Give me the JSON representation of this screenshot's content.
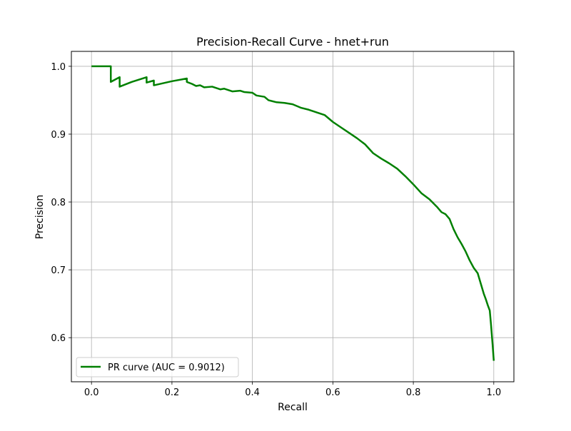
{
  "chart_data": {
    "type": "line",
    "title": "Precision-Recall Curve - hnet+run",
    "xlabel": "Recall",
    "ylabel": "Precision",
    "xlim": [
      -0.05,
      1.05
    ],
    "ylim": [
      0.535,
      1.022
    ],
    "x_ticks": [
      {
        "value": 0.0,
        "label": "0.0"
      },
      {
        "value": 0.2,
        "label": "0.2"
      },
      {
        "value": 0.4,
        "label": "0.4"
      },
      {
        "value": 0.6,
        "label": "0.6"
      },
      {
        "value": 0.8,
        "label": "0.8"
      },
      {
        "value": 1.0,
        "label": "1.0"
      }
    ],
    "y_ticks": [
      {
        "value": 0.6,
        "label": "0.6"
      },
      {
        "value": 0.7,
        "label": "0.7"
      },
      {
        "value": 0.8,
        "label": "0.8"
      },
      {
        "value": 0.9,
        "label": "0.9"
      },
      {
        "value": 1.0,
        "label": "1.0"
      }
    ],
    "grid": true,
    "legend_position": "lower-left",
    "series": [
      {
        "name": "PR curve (AUC = 0.9012)",
        "color": "#008000",
        "x": [
          0.0,
          0.048,
          0.048,
          0.07,
          0.07,
          0.1,
          0.137,
          0.137,
          0.155,
          0.155,
          0.2,
          0.237,
          0.237,
          0.25,
          0.26,
          0.27,
          0.28,
          0.3,
          0.32,
          0.33,
          0.35,
          0.37,
          0.38,
          0.4,
          0.41,
          0.43,
          0.44,
          0.46,
          0.48,
          0.5,
          0.52,
          0.54,
          0.56,
          0.58,
          0.6,
          0.62,
          0.64,
          0.66,
          0.68,
          0.7,
          0.72,
          0.74,
          0.76,
          0.78,
          0.8,
          0.82,
          0.84,
          0.86,
          0.87,
          0.88,
          0.89,
          0.9,
          0.91,
          0.92,
          0.93,
          0.94,
          0.95,
          0.96,
          0.965,
          0.97,
          0.975,
          0.98,
          0.985,
          0.99,
          0.993,
          0.997,
          1.0
        ],
        "y": [
          1.0,
          1.0,
          0.977,
          0.984,
          0.97,
          0.977,
          0.984,
          0.976,
          0.979,
          0.972,
          0.978,
          0.982,
          0.977,
          0.974,
          0.971,
          0.972,
          0.969,
          0.97,
          0.966,
          0.967,
          0.963,
          0.964,
          0.962,
          0.961,
          0.957,
          0.955,
          0.95,
          0.947,
          0.946,
          0.944,
          0.939,
          0.936,
          0.932,
          0.928,
          0.918,
          0.91,
          0.902,
          0.894,
          0.885,
          0.872,
          0.864,
          0.857,
          0.849,
          0.838,
          0.826,
          0.813,
          0.804,
          0.792,
          0.785,
          0.782,
          0.775,
          0.76,
          0.748,
          0.738,
          0.727,
          0.714,
          0.703,
          0.695,
          0.685,
          0.675,
          0.665,
          0.657,
          0.648,
          0.64,
          0.62,
          0.59,
          0.566
        ]
      }
    ]
  }
}
